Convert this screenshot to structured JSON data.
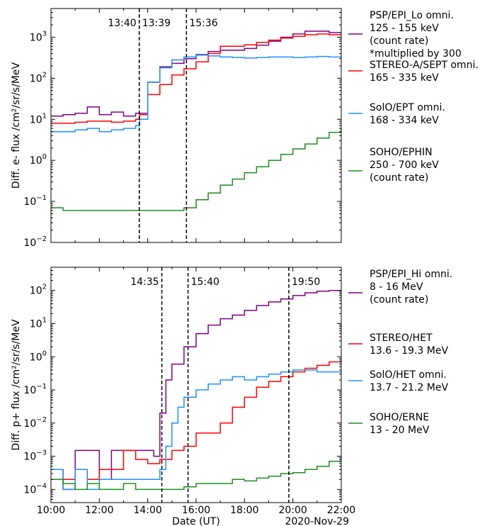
{
  "chart_data": [
    {
      "type": "line",
      "panel": "top",
      "ylabel": "Diff. e- flux /cm²/sr/s/MeV",
      "yscale": "log",
      "ylim": [
        0.01,
        5000
      ],
      "xlim": [
        "2020-11-29 10:00",
        "2020-11-29 22:00"
      ],
      "yticks": [
        {
          "value": 0.01,
          "base": "10",
          "exp": "−2"
        },
        {
          "value": 0.1,
          "base": "10",
          "exp": "−1"
        },
        {
          "value": 1,
          "base": "10",
          "exp": "0"
        },
        {
          "value": 10,
          "base": "10",
          "exp": "1"
        },
        {
          "value": 100,
          "base": "10",
          "exp": "2"
        },
        {
          "value": 1000,
          "base": "10",
          "exp": "3"
        }
      ],
      "vlines": [
        {
          "x": "13:39",
          "label": "13:40",
          "label_side": "left"
        },
        {
          "x": "13:39",
          "label": "13:39",
          "label_side": "right"
        },
        {
          "x": "15:36",
          "label": "15:36",
          "label_side": "right"
        }
      ],
      "series": [
        {
          "name_lines": [
            "PSP/EPI_Lo omni.",
            "125 - 155 keV",
            "(count rate)",
            "*multiplied by 300"
          ],
          "color": "#800080",
          "x": [
            "10:00",
            "10:30",
            "11:00",
            "11:30",
            "12:00",
            "12:30",
            "13:00",
            "13:30",
            "13:40",
            "14:00",
            "14:30",
            "15:00",
            "15:30",
            "16:00",
            "16:30",
            "17:00",
            "17:30",
            "18:00",
            "18:30",
            "19:00",
            "19:30",
            "20:00",
            "20:30",
            "21:00",
            "21:30",
            "22:00"
          ],
          "y": [
            12,
            13,
            14,
            20,
            13,
            15,
            12,
            14,
            14,
            80,
            190,
            230,
            300,
            370,
            450,
            480,
            480,
            530,
            640,
            800,
            1000,
            1200,
            1400,
            1400,
            1300,
            1200
          ]
        },
        {
          "name_lines": [
            "STEREO-A/SEPT omni.",
            "165 - 335 keV"
          ],
          "color": "#ff0000",
          "x": [
            "10:00",
            "10:30",
            "11:00",
            "11:30",
            "12:00",
            "12:30",
            "13:00",
            "13:30",
            "13:40",
            "14:00",
            "14:30",
            "15:00",
            "15:30",
            "16:00",
            "16:30",
            "17:00",
            "17:30",
            "18:00",
            "18:30",
            "19:00",
            "19:30",
            "20:00",
            "20:30",
            "21:00",
            "21:30",
            "22:00"
          ],
          "y": [
            8,
            8,
            8.5,
            9,
            9,
            8.5,
            9,
            10,
            13,
            40,
            70,
            120,
            170,
            250,
            400,
            600,
            600,
            650,
            750,
            850,
            950,
            1050,
            1150,
            1200,
            1150,
            1100
          ]
        },
        {
          "name_lines": [
            "SolO/EPT omni.",
            "168 - 334 keV"
          ],
          "color": "#1e90ff",
          "x": [
            "10:00",
            "10:30",
            "11:00",
            "11:30",
            "12:00",
            "12:30",
            "13:00",
            "13:30",
            "13:40",
            "14:00",
            "14:30",
            "15:00",
            "15:30",
            "16:00",
            "16:30",
            "17:00",
            "17:30",
            "18:00",
            "18:30",
            "19:00",
            "19:30",
            "20:00",
            "20:30",
            "21:00",
            "21:30",
            "22:00"
          ],
          "y": [
            5,
            5,
            5.5,
            6,
            5,
            5.5,
            6,
            7,
            10,
            80,
            180,
            280,
            330,
            380,
            350,
            330,
            320,
            310,
            320,
            330,
            330,
            320,
            330,
            340,
            330,
            320
          ]
        },
        {
          "name_lines": [
            "SOHO/EPHIN",
            "250 - 700 keV",
            "(count rate)"
          ],
          "color": "#228b22",
          "x": [
            "10:00",
            "10:30",
            "11:00",
            "11:30",
            "12:00",
            "12:30",
            "13:00",
            "13:30",
            "14:00",
            "14:30",
            "15:00",
            "15:30",
            "16:00",
            "16:30",
            "17:00",
            "17:30",
            "18:00",
            "18:30",
            "19:00",
            "19:30",
            "20:00",
            "20:30",
            "21:00",
            "21:30",
            "22:00"
          ],
          "y": [
            0.07,
            0.06,
            0.06,
            0.06,
            0.06,
            0.06,
            0.06,
            0.06,
            0.06,
            0.06,
            0.06,
            0.07,
            0.11,
            0.16,
            0.25,
            0.35,
            0.5,
            0.7,
            1.0,
            1.4,
            1.9,
            2.5,
            3.5,
            4.8,
            6.0
          ]
        }
      ]
    },
    {
      "type": "line",
      "panel": "bottom",
      "ylabel": "Diff. p+ flux /cm²/sr/s/MeV",
      "xlabel": "Date (UT)",
      "date_label": "2020-Nov-29",
      "yscale": "log",
      "ylim": [
        4e-05,
        500
      ],
      "xlim": [
        "2020-11-29 10:00",
        "2020-11-29 22:00"
      ],
      "xticks": [
        "10:00",
        "12:00",
        "14:00",
        "16:00",
        "18:00",
        "20:00",
        "22:00"
      ],
      "yticks": [
        {
          "value": 0.0001,
          "base": "10",
          "exp": "−4"
        },
        {
          "value": 0.001,
          "base": "10",
          "exp": "−3"
        },
        {
          "value": 0.01,
          "base": "10",
          "exp": "−2"
        },
        {
          "value": 0.1,
          "base": "10",
          "exp": "−1"
        },
        {
          "value": 1,
          "base": "10",
          "exp": "0"
        },
        {
          "value": 10,
          "base": "10",
          "exp": "1"
        },
        {
          "value": 100,
          "base": "10",
          "exp": "2"
        }
      ],
      "vlines": [
        {
          "x": "14:35",
          "label": "14:35",
          "label_side": "left"
        },
        {
          "x": "15:40",
          "label": "15:40",
          "label_side": "right"
        },
        {
          "x": "19:50",
          "label": "19:50",
          "label_side": "right"
        }
      ],
      "series": [
        {
          "name_lines": [
            "PSP/EPI_Hi omni.",
            "8 - 16 MeV",
            "(count rate)"
          ],
          "color": "#800080",
          "x": [
            "10:00",
            "10:30",
            "11:00",
            "11:30",
            "12:00",
            "12:30",
            "13:00",
            "13:30",
            "14:00",
            "14:15",
            "14:30",
            "14:45",
            "15:00",
            "15:30",
            "16:00",
            "16:30",
            "17:00",
            "17:30",
            "18:00",
            "18:30",
            "19:00",
            "19:30",
            "20:00",
            "20:30",
            "21:00",
            "21:30",
            "22:00"
          ],
          "y": [
            0.0002,
            0.0001,
            0.0015,
            0.0015,
            0.0002,
            0.0015,
            0.0015,
            0.0015,
            0.0015,
            0.001,
            0.02,
            0.2,
            0.6,
            2.0,
            5.0,
            9.0,
            14,
            18,
            25,
            35,
            45,
            55,
            70,
            85,
            95,
            100,
            100
          ]
        },
        {
          "name_lines": [
            "STEREO/HET",
            "13.6 - 19.3 MeV"
          ],
          "color": "#ff0000",
          "x": [
            "10:00",
            "10:30",
            "11:00",
            "11:30",
            "12:00",
            "12:30",
            "13:00",
            "13:30",
            "14:00",
            "14:30",
            "15:00",
            "15:30",
            "16:00",
            "16:30",
            "17:00",
            "17:30",
            "18:00",
            "18:30",
            "19:00",
            "19:30",
            "20:00",
            "20:30",
            "21:00",
            "21:30",
            "22:00"
          ],
          "y": [
            0.0004,
            0.0002,
            0.0004,
            0.0002,
            0.0004,
            0.0004,
            0.0015,
            0.0008,
            0.0006,
            0.0008,
            0.0015,
            0.002,
            0.005,
            0.005,
            0.01,
            0.03,
            0.06,
            0.12,
            0.18,
            0.25,
            0.35,
            0.45,
            0.55,
            0.7,
            0.85
          ]
        },
        {
          "name_lines": [
            "SolO/HET omni.",
            "13.7 - 21.2 MeV"
          ],
          "color": "#1e90ff",
          "x": [
            "10:00",
            "10:30",
            "11:00",
            "11:30",
            "12:00",
            "12:30",
            "13:00",
            "13:30",
            "14:00",
            "14:30",
            "14:45",
            "15:00",
            "15:15",
            "15:30",
            "16:00",
            "16:30",
            "17:00",
            "17:30",
            "18:00",
            "18:30",
            "19:00",
            "19:30",
            "20:00",
            "20:30",
            "21:00",
            "21:30",
            "22:00"
          ],
          "y": [
            0.0004,
            0.0001,
            0.0004,
            0.0001,
            0.0002,
            0.0002,
            0.0002,
            0.0002,
            0.0002,
            0.0004,
            0.002,
            0.01,
            0.03,
            0.06,
            0.1,
            0.15,
            0.2,
            0.25,
            0.2,
            0.25,
            0.3,
            0.35,
            0.4,
            0.4,
            0.35,
            0.35,
            0.35
          ]
        },
        {
          "name_lines": [
            "SOHO/ERNE",
            "13 - 20 MeV"
          ],
          "color": "#228b22",
          "x": [
            "10:00",
            "10:30",
            "11:00",
            "11:30",
            "12:00",
            "12:30",
            "13:00",
            "13:30",
            "14:00",
            "14:30",
            "15:00",
            "15:30",
            "16:00",
            "16:30",
            "17:00",
            "17:30",
            "18:00",
            "18:30",
            "19:00",
            "19:30",
            "20:00",
            "20:30",
            "21:00",
            "21:30",
            "22:00"
          ],
          "y": [
            0.0002,
            0.00015,
            0.0001,
            0.00015,
            0.0001,
            0.0001,
            0.00015,
            0.0001,
            0.0001,
            0.0001,
            0.0001,
            0.00012,
            0.00015,
            0.00015,
            0.00015,
            0.0002,
            0.00018,
            0.00022,
            0.00025,
            0.0003,
            0.00032,
            0.0004,
            0.0005,
            0.0007,
            0.001
          ]
        }
      ]
    }
  ]
}
